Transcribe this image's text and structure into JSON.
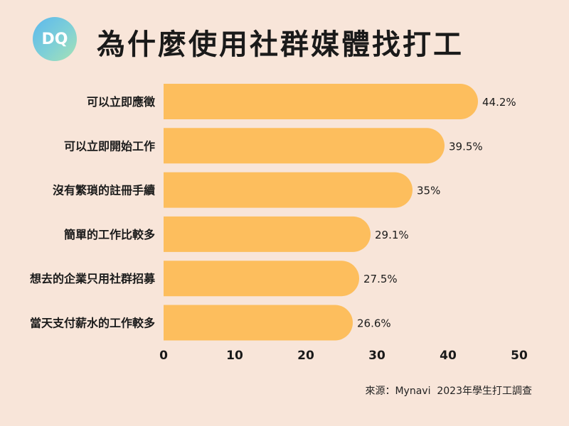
{
  "header": {
    "logo_text": "DQ",
    "title": "為什麼使用社群媒體找打工"
  },
  "chart_data": {
    "type": "bar",
    "orientation": "horizontal",
    "title": "為什麼使用社群媒體找打工",
    "categories": [
      "可以立即應徵",
      "可以立即開始工作",
      "沒有繁瑣的註冊手續",
      "簡單的工作比較多",
      "想去的企業只用社群招募",
      "當天支付薪水的工作較多"
    ],
    "values": [
      44.2,
      39.5,
      35,
      29.1,
      27.5,
      26.6
    ],
    "data_labels": [
      "44.2%",
      "39.5%",
      "35%",
      "29.1%",
      "27.5%",
      "26.6%"
    ],
    "x_ticks": [
      "0",
      "10",
      "20",
      "30",
      "40",
      "50"
    ],
    "xlim": [
      0,
      50
    ],
    "grid": false,
    "legend": "none",
    "bar_color": "#fdbe5d"
  },
  "footer": {
    "source": "來源：Mynavi  2023年學生打工調查"
  }
}
